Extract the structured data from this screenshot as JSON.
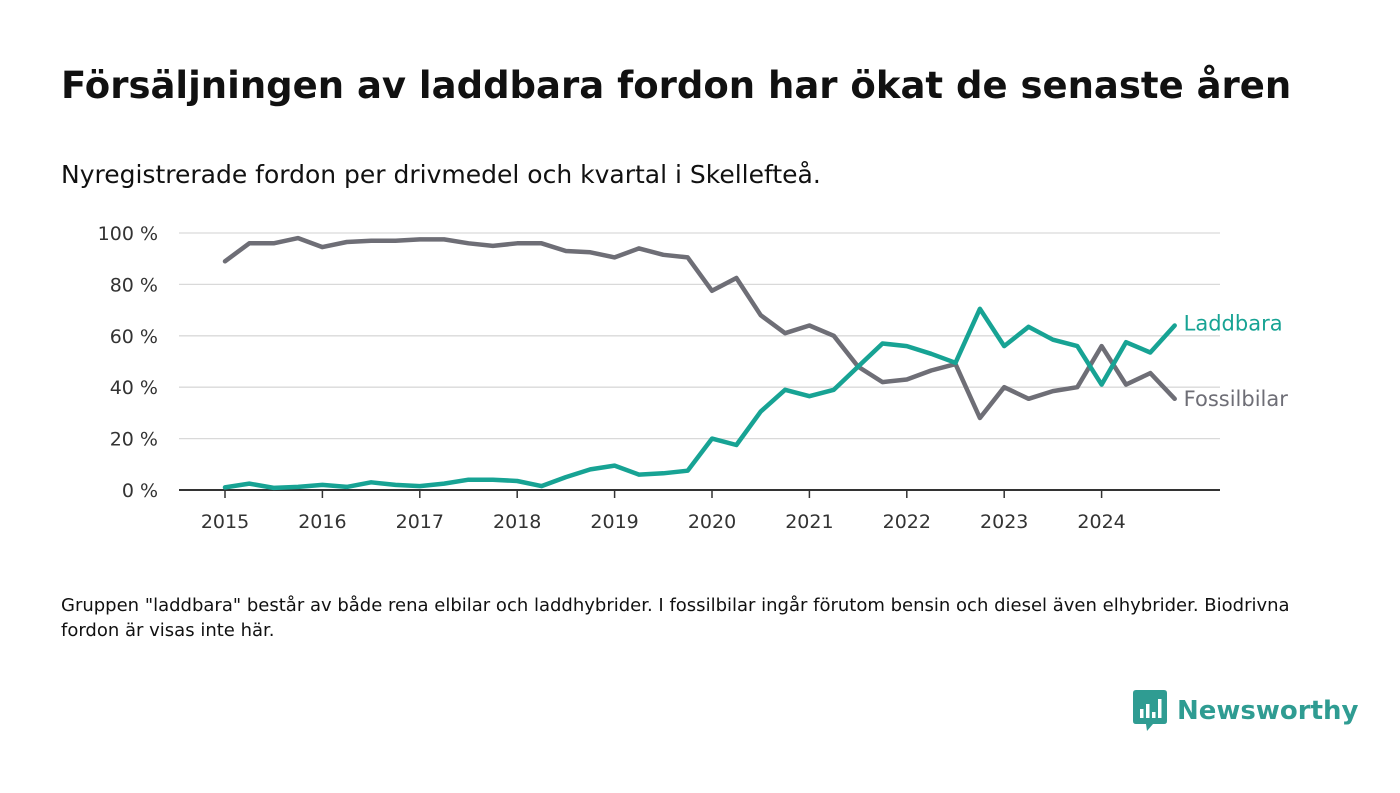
{
  "title": "Försäljningen av laddbara fordon har ökat de senaste åren",
  "subtitle": "Nyregistrerade fordon per drivmedel och kvartal i Skellefteå.",
  "footnote": "Gruppen \"laddbara\" består av både rena elbilar och laddhybrider. I fossilbilar ingår förutom bensin och diesel även elhybrider. Biodrivna fordon är visas inte här.",
  "brand": {
    "name": "Newsworthy",
    "color": "#2f9c92"
  },
  "colors": {
    "laddbara": "#17a394",
    "fossilbilar": "#6e6e76",
    "grid": "#d9d9d9",
    "axis": "#333333"
  },
  "chart_data": {
    "type": "line",
    "x_unit": "quarter",
    "x": [
      "2015Q1",
      "2015Q2",
      "2015Q3",
      "2015Q4",
      "2016Q1",
      "2016Q2",
      "2016Q3",
      "2016Q4",
      "2017Q1",
      "2017Q2",
      "2017Q3",
      "2017Q4",
      "2018Q1",
      "2018Q2",
      "2018Q3",
      "2018Q4",
      "2019Q1",
      "2019Q2",
      "2019Q3",
      "2019Q4",
      "2020Q1",
      "2020Q2",
      "2020Q3",
      "2020Q4",
      "2021Q1",
      "2021Q2",
      "2021Q3",
      "2021Q4",
      "2022Q1",
      "2022Q2",
      "2022Q3",
      "2022Q4",
      "2023Q1",
      "2023Q2",
      "2023Q3",
      "2023Q4",
      "2024Q1",
      "2024Q2",
      "2024Q3",
      "2024Q4"
    ],
    "x_ticks": [
      "2015",
      "2016",
      "2017",
      "2018",
      "2019",
      "2020",
      "2021",
      "2022",
      "2023",
      "2024"
    ],
    "y_ticks": [
      "0 %",
      "20 %",
      "40 %",
      "60 %",
      "80 %",
      "100 %"
    ],
    "ylim": [
      0,
      100
    ],
    "grid": true,
    "legend": "direct labels at line ends",
    "series": [
      {
        "name": "Laddbara",
        "color_key": "laddbara",
        "values": [
          1,
          2.5,
          0.8,
          1.2,
          2,
          1.2,
          3,
          2,
          1.5,
          2.5,
          4,
          4,
          3.5,
          1.5,
          5,
          8,
          9.5,
          6,
          6.5,
          7.5,
          20,
          17.5,
          30.5,
          39,
          36.5,
          39,
          48,
          57,
          56,
          53,
          49.5,
          70.5,
          56,
          63.5,
          58.5,
          56,
          41,
          57.5,
          53.5,
          64
        ]
      },
      {
        "name": "Fossilbilar",
        "color_key": "fossilbilar",
        "values": [
          89,
          96,
          96,
          98,
          94.5,
          96.5,
          97,
          97,
          97.5,
          97.5,
          96,
          95,
          96,
          96,
          93,
          92.5,
          90.5,
          94,
          91.5,
          90.5,
          77.5,
          82.5,
          68,
          61,
          64,
          60,
          48,
          42,
          43,
          46.5,
          49,
          28,
          40,
          35.5,
          38.5,
          40,
          56,
          41,
          45.5,
          35.5
        ]
      }
    ]
  }
}
